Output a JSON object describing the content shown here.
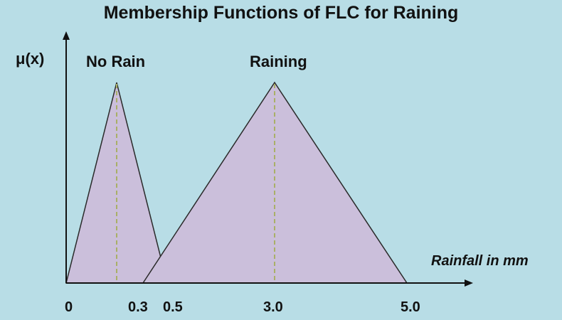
{
  "title": "Membership Functions of FLC for Raining",
  "y_axis_label": "μ(x)",
  "x_axis_label": "Rainfall in mm",
  "sets": [
    {
      "name": "No Rain",
      "points": [
        0,
        0.3,
        0.5
      ]
    },
    {
      "name": "Raining",
      "points": [
        0.3,
        3.0,
        5.0
      ]
    }
  ],
  "tick_labels": [
    "0",
    "0.3",
    "0.5",
    "3.0",
    "5.0"
  ],
  "colors": {
    "background": "#b8dde6",
    "fill": "#cbbfdb",
    "outline": "#2a2a2a",
    "peak_dash": "#a9b067",
    "axis": "#111111"
  }
}
